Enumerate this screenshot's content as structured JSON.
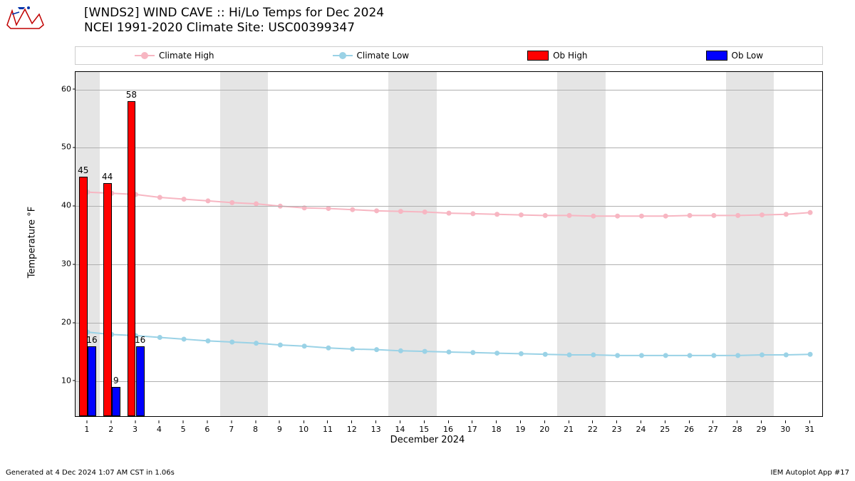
{
  "title_line1": "[WNDS2] WIND CAVE :: Hi/Lo Temps for Dec 2024",
  "title_line2": "NCEI 1991-2020 Climate Site: USC00399347",
  "xlabel": "December 2024",
  "ylabel": "Temperature °F",
  "footer_left": "Generated at 4 Dec 2024 1:07 AM CST in 1.06s",
  "footer_right": "IEM Autoplot App #17",
  "chart": {
    "type": "bar+line",
    "xlim": [
      0.5,
      31.5
    ],
    "ylim": [
      4,
      63
    ],
    "yticks": [
      10,
      20,
      30,
      40,
      50,
      60
    ],
    "xticks": [
      1,
      2,
      3,
      4,
      5,
      6,
      7,
      8,
      9,
      10,
      11,
      12,
      13,
      14,
      15,
      16,
      17,
      18,
      19,
      20,
      21,
      22,
      23,
      24,
      25,
      26,
      27,
      28,
      29,
      30,
      31
    ],
    "weekend_bands": [
      [
        1,
        1
      ],
      [
        7,
        8
      ],
      [
        14,
        15
      ],
      [
        21,
        22
      ],
      [
        28,
        29
      ]
    ],
    "plot_bg": "#ffffff",
    "weekend_color": "#e5e5e5",
    "grid_color": "#b0b0b0",
    "font_color": "#000000",
    "title_fontsize": 17,
    "label_fontsize": 13,
    "tick_fontsize": 11,
    "bar_width": 0.35,
    "ob_high": {
      "color": "#ff0000",
      "edge": "#000000",
      "days": [
        1,
        2,
        3
      ],
      "values": [
        45,
        44,
        58
      ]
    },
    "ob_low": {
      "color": "#0000ff",
      "edge": "#000000",
      "days": [
        1,
        2,
        3
      ],
      "values": [
        16,
        9,
        16
      ]
    },
    "climate_high": {
      "color": "#f7b6c2",
      "marker_size": 7,
      "line_width": 2,
      "values": [
        42.4,
        42.2,
        42.0,
        41.5,
        41.2,
        40.9,
        40.6,
        40.4,
        40.0,
        39.7,
        39.6,
        39.4,
        39.2,
        39.1,
        39.0,
        38.8,
        38.7,
        38.6,
        38.5,
        38.4,
        38.4,
        38.3,
        38.3,
        38.3,
        38.3,
        38.4,
        38.4,
        38.4,
        38.5,
        38.6,
        38.9
      ]
    },
    "climate_low": {
      "color": "#9ad2e6",
      "marker_size": 7,
      "line_width": 2,
      "values": [
        18.4,
        18.0,
        17.8,
        17.5,
        17.2,
        16.9,
        16.7,
        16.5,
        16.2,
        16.0,
        15.7,
        15.5,
        15.4,
        15.2,
        15.1,
        15.0,
        14.9,
        14.8,
        14.7,
        14.6,
        14.5,
        14.5,
        14.4,
        14.4,
        14.4,
        14.4,
        14.4,
        14.4,
        14.5,
        14.5,
        14.6
      ]
    }
  },
  "legend": {
    "items": [
      {
        "label": "Climate High",
        "type": "line",
        "color": "#f7b6c2"
      },
      {
        "label": "Climate Low",
        "type": "line",
        "color": "#9ad2e6"
      },
      {
        "label": "Ob High",
        "type": "swatch",
        "color": "#ff0000"
      },
      {
        "label": "Ob Low",
        "type": "swatch",
        "color": "#0000ff"
      }
    ]
  }
}
